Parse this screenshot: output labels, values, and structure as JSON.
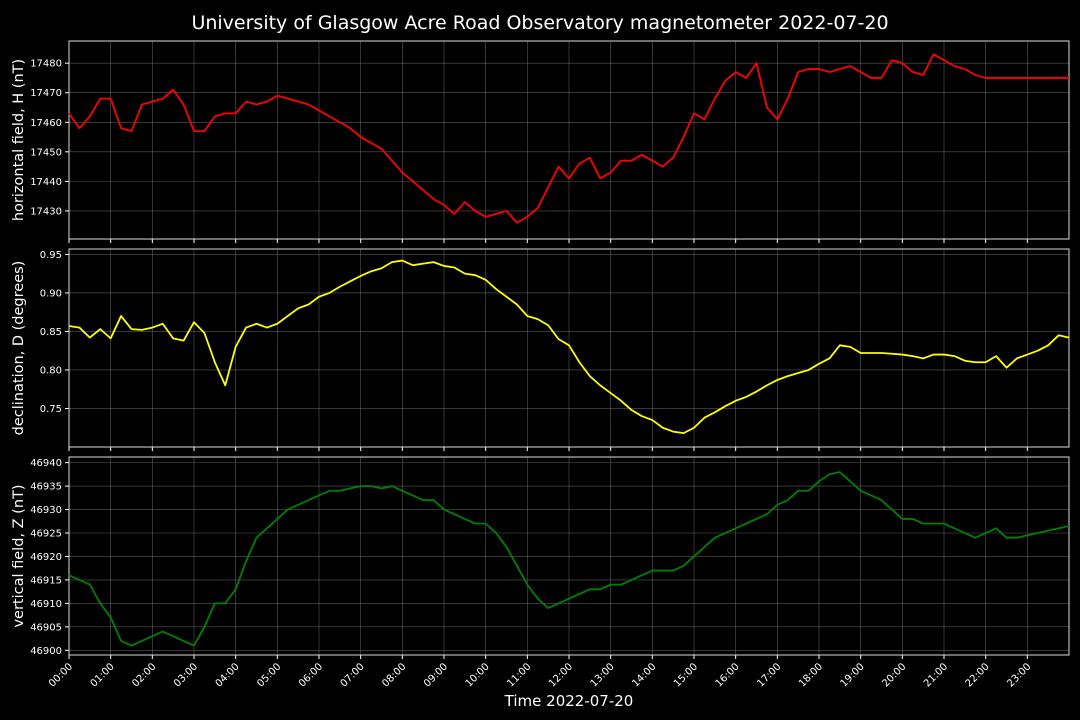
{
  "title": "University of Glasgow Acre Road Observatory magnetometer 2022-07-20",
  "xlabel": "Time 2022-07-20",
  "chart_data": {
    "type": "line",
    "title": "University of Glasgow Acre Road Observatory magnetometer 2022-07-20",
    "xlabel": "Time 2022-07-20",
    "x_tick_labels": [
      "00:00",
      "01:00",
      "02:00",
      "03:00",
      "04:00",
      "05:00",
      "06:00",
      "07:00",
      "08:00",
      "09:00",
      "10:00",
      "11:00",
      "12:00",
      "13:00",
      "14:00",
      "15:00",
      "16:00",
      "17:00",
      "18:00",
      "19:00",
      "20:00",
      "21:00",
      "22:00",
      "23:00"
    ],
    "xlim": [
      "00:00",
      "24:00"
    ],
    "grid": true,
    "panels": [
      {
        "ylabel": "horizontal field, H (nT)",
        "color": "#ff0000",
        "ylim": [
          17420.5,
          17487.5
        ],
        "yticks": [
          17430,
          17440,
          17450,
          17460,
          17470,
          17480
        ],
        "series": [
          {
            "x": [
              0,
              0.25,
              0.5,
              0.75,
              1,
              1.25,
              1.5,
              1.75,
              2,
              2.25,
              2.5,
              2.75,
              3,
              3.25,
              3.5,
              3.75,
              4,
              4.25,
              4.5,
              4.75,
              5,
              5.25,
              5.5,
              5.75,
              6,
              6.25,
              6.5,
              6.75,
              7,
              7.25,
              7.5,
              7.75,
              8,
              8.25,
              8.5,
              8.75,
              9,
              9.25,
              9.5,
              9.75,
              10,
              10.25,
              10.5,
              10.75,
              11,
              11.25,
              11.5,
              11.75,
              12,
              12.25,
              12.5,
              12.75,
              13,
              13.25,
              13.5,
              13.75,
              14,
              14.25,
              14.5,
              14.75,
              15,
              15.25,
              15.5,
              15.75,
              16,
              16.25,
              16.5,
              16.75,
              17,
              17.25,
              17.5,
              17.75,
              18,
              18.25,
              18.5,
              18.75,
              19,
              19.25,
              19.5,
              19.75,
              20,
              20.25,
              20.5,
              20.75,
              21,
              21.25,
              21.5,
              21.75,
              22,
              22.25,
              22.5,
              22.75,
              23,
              23.25,
              23.5,
              23.75,
              24
            ],
            "y": [
              17463,
              17458,
              17462,
              17468,
              17468,
              17458,
              17457,
              17466,
              17467,
              17468,
              17471,
              17466,
              17457,
              17457,
              17462,
              17463,
              17463,
              17467,
              17466,
              17467,
              17469,
              17468,
              17467,
              17466,
              17464,
              17462,
              17460,
              17458,
              17455,
              17453,
              17451,
              17447,
              17443,
              17440,
              17437,
              17434,
              17432,
              17429,
              17433,
              17430,
              17428,
              17429,
              17430,
              17426,
              17428,
              17431,
              17438,
              17445,
              17441,
              17446,
              17448,
              17441,
              17443,
              17447,
              17447,
              17449,
              17447,
              17445,
              17448,
              17455,
              17463,
              17461,
              17468,
              17474,
              17477,
              17475,
              17480,
              17465,
              17461,
              17468,
              17477,
              17478,
              17478,
              17477,
              17478,
              17479,
              17477,
              17475,
              17475,
              17481,
              17480,
              17477,
              17476,
              17483,
              17481,
              17479,
              17478,
              17476,
              17475,
              17475,
              17475,
              17475,
              17475,
              17475,
              17475,
              17475,
              17475
            ],
            "x_units": "hours"
          }
        ]
      },
      {
        "ylabel": "declination, D (degrees)",
        "color": "#ffff00",
        "ylim": [
          0.7,
          0.957
        ],
        "yticks": [
          0.75,
          0.8,
          0.85,
          0.9,
          0.95
        ],
        "series": [
          {
            "x": [
              0,
              0.25,
              0.5,
              0.75,
              1,
              1.25,
              1.5,
              1.75,
              2,
              2.25,
              2.5,
              2.75,
              3,
              3.25,
              3.5,
              3.75,
              4,
              4.25,
              4.5,
              4.75,
              5,
              5.25,
              5.5,
              5.75,
              6,
              6.25,
              6.5,
              6.75,
              7,
              7.25,
              7.5,
              7.75,
              8,
              8.25,
              8.5,
              8.75,
              9,
              9.25,
              9.5,
              9.75,
              10,
              10.25,
              10.5,
              10.75,
              11,
              11.25,
              11.5,
              11.75,
              12,
              12.25,
              12.5,
              12.75,
              13,
              13.25,
              13.5,
              13.75,
              14,
              14.25,
              14.5,
              14.75,
              15,
              15.25,
              15.5,
              15.75,
              16,
              16.25,
              16.5,
              16.75,
              17,
              17.25,
              17.5,
              17.75,
              18,
              18.25,
              18.5,
              18.75,
              19,
              19.25,
              19.5,
              19.75,
              20,
              20.25,
              20.5,
              20.75,
              21,
              21.25,
              21.5,
              21.75,
              22,
              22.25,
              22.5,
              22.75,
              23,
              23.25,
              23.5,
              23.75,
              24
            ],
            "y": [
              0.857,
              0.855,
              0.842,
              0.853,
              0.841,
              0.87,
              0.853,
              0.852,
              0.855,
              0.86,
              0.841,
              0.838,
              0.862,
              0.848,
              0.81,
              0.78,
              0.83,
              0.855,
              0.86,
              0.855,
              0.86,
              0.87,
              0.88,
              0.885,
              0.895,
              0.9,
              0.908,
              0.915,
              0.922,
              0.928,
              0.932,
              0.94,
              0.942,
              0.936,
              0.938,
              0.94,
              0.935,
              0.933,
              0.925,
              0.923,
              0.917,
              0.905,
              0.895,
              0.885,
              0.87,
              0.866,
              0.858,
              0.84,
              0.832,
              0.81,
              0.792,
              0.78,
              0.77,
              0.76,
              0.748,
              0.74,
              0.735,
              0.725,
              0.72,
              0.718,
              0.725,
              0.738,
              0.745,
              0.753,
              0.76,
              0.765,
              0.772,
              0.78,
              0.787,
              0.792,
              0.796,
              0.8,
              0.808,
              0.815,
              0.832,
              0.83,
              0.822,
              0.822,
              0.822,
              0.821,
              0.82,
              0.818,
              0.815,
              0.82,
              0.82,
              0.818,
              0.812,
              0.81,
              0.81,
              0.818,
              0.803,
              0.815,
              0.82,
              0.825,
              0.832,
              0.845,
              0.842
            ],
            "x_units": "hours"
          }
        ]
      },
      {
        "ylabel": "vertical field, Z (nT)",
        "color": "#008000",
        "ylim": [
          46899,
          46941.2
        ],
        "yticks": [
          46900,
          46905,
          46910,
          46915,
          46920,
          46925,
          46930,
          46935,
          46940
        ],
        "series": [
          {
            "x": [
              0,
              0.25,
              0.5,
              0.75,
              1,
              1.25,
              1.5,
              1.75,
              2,
              2.25,
              2.5,
              2.75,
              3,
              3.25,
              3.5,
              3.75,
              4,
              4.25,
              4.5,
              4.75,
              5,
              5.25,
              5.5,
              5.75,
              6,
              6.25,
              6.5,
              6.75,
              7,
              7.25,
              7.5,
              7.75,
              8,
              8.25,
              8.5,
              8.75,
              9,
              9.25,
              9.5,
              9.75,
              10,
              10.25,
              10.5,
              10.75,
              11,
              11.25,
              11.5,
              11.75,
              12,
              12.25,
              12.5,
              12.75,
              13,
              13.25,
              13.5,
              13.75,
              14,
              14.25,
              14.5,
              14.75,
              15,
              15.25,
              15.5,
              15.75,
              16,
              16.25,
              16.5,
              16.75,
              17,
              17.25,
              17.5,
              17.75,
              18,
              18.25,
              18.5,
              18.75,
              19,
              19.25,
              19.5,
              19.75,
              20,
              20.25,
              20.5,
              20.75,
              21,
              21.25,
              21.5,
              21.75,
              22,
              22.25,
              22.5,
              22.75,
              23,
              23.25,
              23.5,
              23.75,
              24
            ],
            "y": [
              46916,
              46915,
              46914,
              46910,
              46907,
              46902,
              46901,
              46902,
              46903,
              46904,
              46903,
              46902,
              46901,
              46905,
              46910,
              46910,
              46913,
              46919,
              46924,
              46926,
              46928,
              46930,
              46931,
              46932,
              46933,
              46934,
              46934,
              46934.5,
              46935,
              46935,
              46934.5,
              46935,
              46934,
              46933,
              46932,
              46932,
              46930,
              46929,
              46928,
              46927,
              46927,
              46925,
              46922,
              46918,
              46914,
              46911,
              46909,
              46910,
              46911,
              46912,
              46913,
              46913,
              46914,
              46914,
              46915,
              46916,
              46917,
              46917,
              46917,
              46918,
              46920,
              46922,
              46924,
              46925,
              46926,
              46927,
              46928,
              46929,
              46931,
              46932,
              46934,
              46934,
              46936,
              46937.5,
              46938,
              46936,
              46934,
              46933,
              46932,
              46930,
              46928,
              46928,
              46927,
              46927,
              46927,
              46926,
              46925,
              46924,
              46925,
              46926,
              46924,
              46924,
              46924.5,
              46925,
              46925.5,
              46926,
              46926.5
            ],
            "x_units": "hours"
          }
        ]
      }
    ]
  }
}
